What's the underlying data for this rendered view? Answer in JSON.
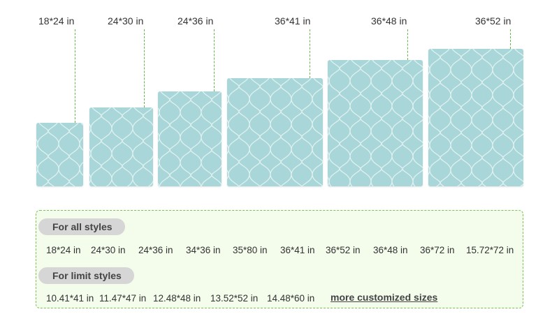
{
  "sizes": [
    {
      "label": "18*24 in"
    },
    {
      "label": "24*30 in"
    },
    {
      "label": "24*36 in"
    },
    {
      "label": "36*41 in"
    },
    {
      "label": "36*48 in"
    },
    {
      "label": "36*52 in"
    }
  ],
  "colors": {
    "mat": "#a9d6d8",
    "pattern": "#dff1f1",
    "leader": "#66b84e",
    "box_bg": "#f4fcec",
    "box_border": "#7cc05a",
    "pill": "#d6d6d6"
  },
  "options": {
    "all_styles": {
      "title": "For all styles",
      "sizes": [
        "18*24 in",
        "24*30 in",
        "24*36 in",
        "34*36 in",
        "35*80 in",
        "36*41 in",
        "36*52 in",
        "36*48 in",
        "36*72 in",
        "15.72*72 in"
      ]
    },
    "limit_styles": {
      "title": "For limit styles",
      "sizes": [
        "10.41*41 in",
        "11.47*47 in",
        "12.48*48 in",
        "13.52*52 in",
        "14.48*60 in"
      ]
    },
    "more_link": "more customized sizes"
  }
}
